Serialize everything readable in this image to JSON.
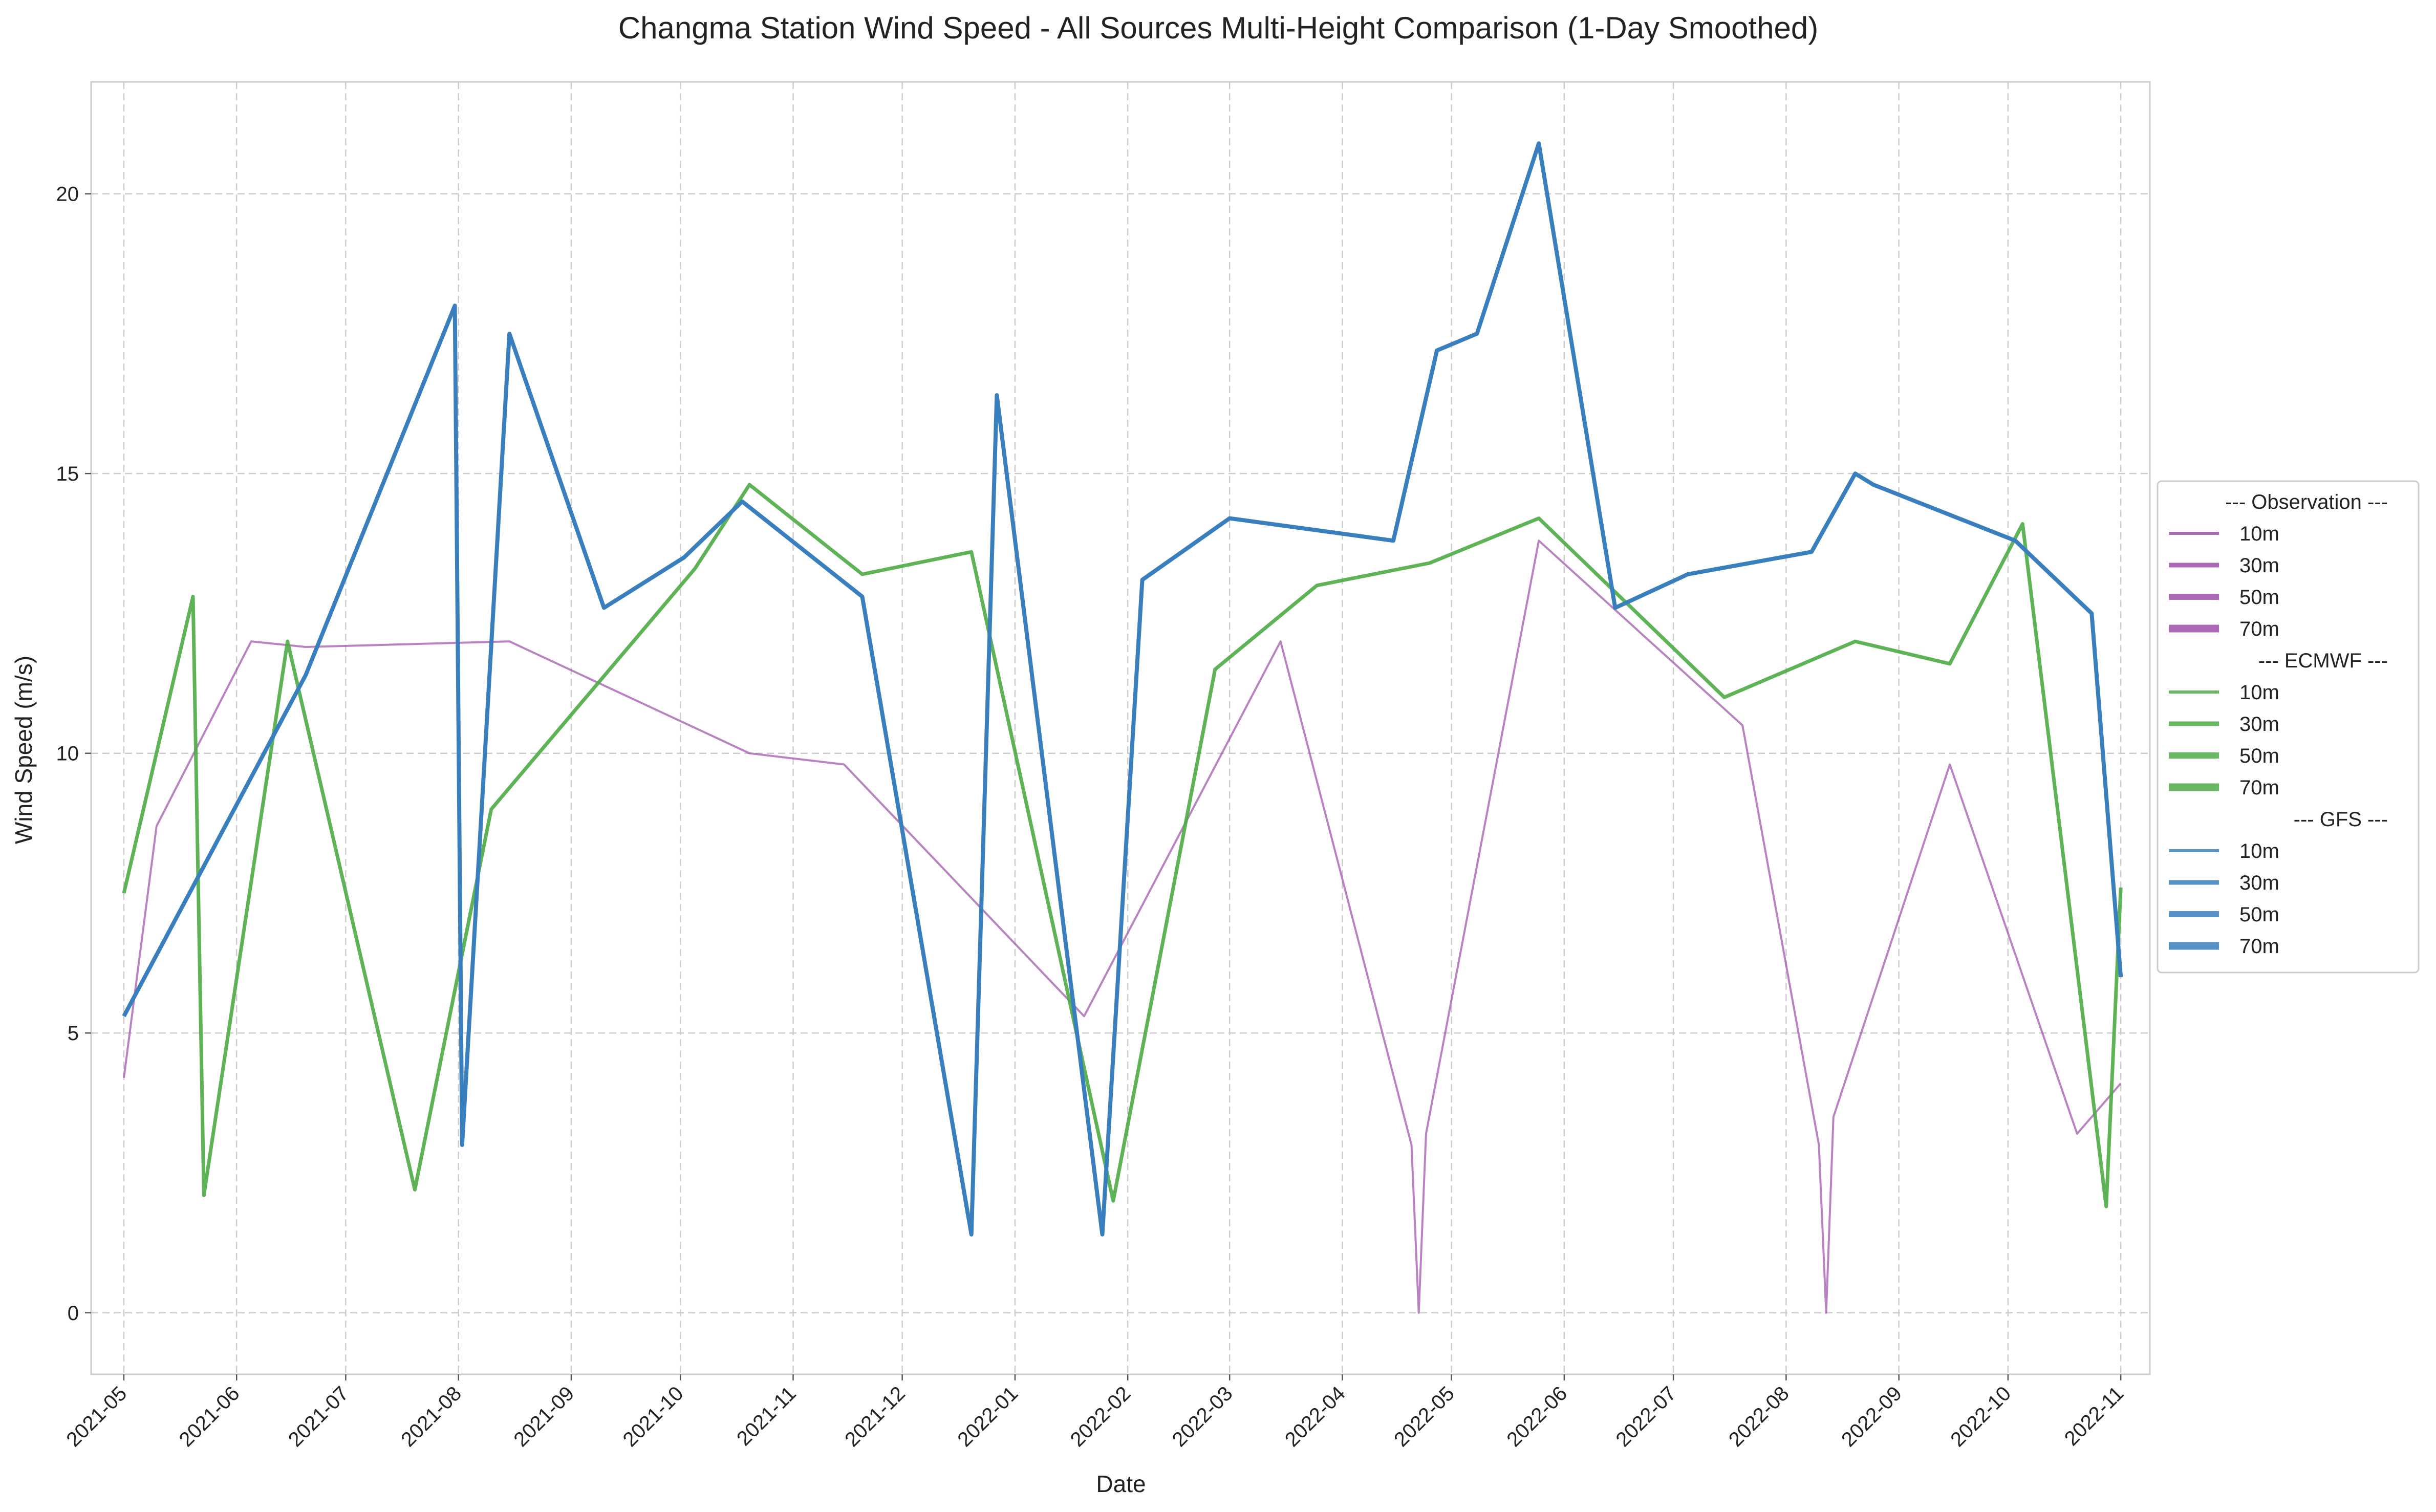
{
  "chart_data": {
    "type": "line",
    "title": "Changma Station Wind Speed - All Sources Multi-Height Comparison (1-Day Smoothed)",
    "xlabel": "Date",
    "ylabel": "Wind Speed (m/s)",
    "x_range": [
      "2021-04-22",
      "2022-11-09"
    ],
    "ylim": [
      -1.1,
      22.0
    ],
    "y_ticks": [
      0,
      5,
      10,
      15,
      20
    ],
    "x_ticks": [
      "2021-05",
      "2021-06",
      "2021-07",
      "2021-08",
      "2021-09",
      "2021-10",
      "2021-11",
      "2021-12",
      "2022-01",
      "2022-02",
      "2022-03",
      "2022-04",
      "2022-05",
      "2022-06",
      "2022-07",
      "2022-08",
      "2022-09",
      "2022-10",
      "2022-11"
    ],
    "grid": true,
    "legend_position": "right, outside",
    "legend": {
      "groups": [
        {
          "header": "--- Observation ---",
          "items": [
            "10m",
            "30m",
            "50m",
            "70m"
          ],
          "color": "#9b4ea8"
        },
        {
          "header": "--- ECMWF ---",
          "items": [
            "10m",
            "30m",
            "50m",
            "70m"
          ],
          "color": "#4dab45"
        },
        {
          "header": "--- GFS ---",
          "items": [
            "10m",
            "30m",
            "50m",
            "70m"
          ],
          "color": "#3a7fbd"
        }
      ]
    },
    "series": [
      {
        "name": "Observation 10m",
        "color": "#9b4ea8",
        "opacity": 0.7,
        "linewidth": 4,
        "x": [
          "2021-05-01",
          "2021-05-10",
          "2021-06-05",
          "2021-06-20",
          "2021-08-15",
          "2021-10-20",
          "2021-11-15",
          "2022-01-20",
          "2022-03-15",
          "2022-04-20",
          "2022-04-22",
          "2022-04-24",
          "2022-05-25",
          "2022-07-20",
          "2022-08-10",
          "2022-08-12",
          "2022-08-14",
          "2022-09-15",
          "2022-10-20",
          "2022-11-01"
        ],
        "y": [
          4.2,
          8.7,
          12.0,
          11.9,
          12.0,
          10.0,
          9.8,
          5.3,
          12.0,
          3.0,
          0.0,
          3.2,
          13.8,
          10.5,
          3.0,
          0.0,
          3.5,
          9.8,
          3.2,
          4.1
        ]
      },
      {
        "name": "ECMWF 70m",
        "color": "#4dab45",
        "opacity": 0.9,
        "linewidth": 7,
        "x": [
          "2021-05-01",
          "2021-05-20",
          "2021-05-23",
          "2021-06-15",
          "2021-07-20",
          "2021-08-10",
          "2021-10-05",
          "2021-10-20",
          "2021-11-20",
          "2021-12-20",
          "2022-01-28",
          "2022-02-25",
          "2022-03-25",
          "2022-04-25",
          "2022-05-25",
          "2022-07-15",
          "2022-08-20",
          "2022-09-15",
          "2022-10-05",
          "2022-10-28",
          "2022-11-01"
        ],
        "y": [
          7.5,
          12.8,
          2.1,
          12.0,
          2.2,
          9.0,
          13.3,
          14.8,
          13.2,
          13.6,
          2.0,
          11.5,
          13.0,
          13.4,
          14.2,
          11.0,
          12.0,
          11.6,
          14.1,
          1.9,
          7.6
        ]
      },
      {
        "name": "GFS 70m",
        "color": "#3a7fbd",
        "opacity": 1.0,
        "linewidth": 8,
        "x": [
          "2021-05-01",
          "2021-06-20",
          "2021-07-31",
          "2021-08-02",
          "2021-08-15",
          "2021-09-10",
          "2021-10-02",
          "2021-10-18",
          "2021-11-20",
          "2021-12-20",
          "2021-12-27",
          "2022-01-25",
          "2022-02-05",
          "2022-03-01",
          "2022-04-15",
          "2022-04-27",
          "2022-05-08",
          "2022-05-25",
          "2022-06-15",
          "2022-07-05",
          "2022-08-08",
          "2022-08-20",
          "2022-08-25",
          "2022-10-03",
          "2022-10-24",
          "2022-11-01"
        ],
        "y": [
          5.3,
          11.4,
          18.0,
          3.0,
          17.5,
          12.6,
          13.5,
          14.5,
          12.8,
          1.4,
          16.4,
          1.4,
          13.1,
          14.2,
          13.8,
          17.2,
          17.5,
          20.9,
          12.6,
          13.2,
          13.6,
          15.0,
          14.8,
          13.8,
          12.5,
          6.0
        ]
      }
    ]
  }
}
